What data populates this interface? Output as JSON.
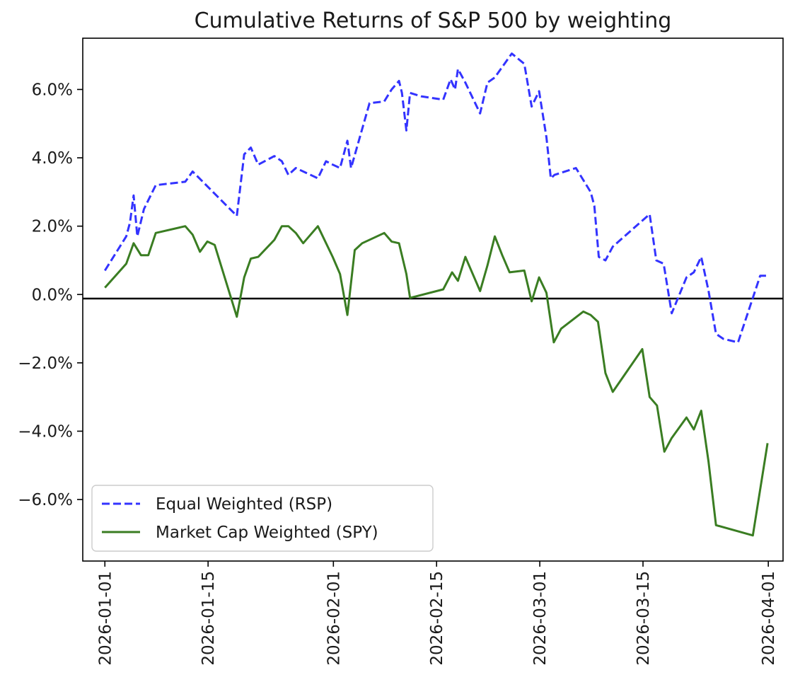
{
  "chart_data": {
    "type": "line",
    "title": "Cumulative Returns of S&P 500 by weighting",
    "xlabel": "",
    "ylabel": "",
    "ylim": [
      -7.8,
      7.5
    ],
    "xlim": [
      "2025-12-29",
      "2026-04-03"
    ],
    "grid": false,
    "legend_position": "lower-left",
    "baseline": 0,
    "yticks": [
      -6,
      -4,
      -2,
      0,
      2,
      4,
      6
    ],
    "ytick_labels": [
      "−6.0%",
      "−4.0%",
      "−2.0%",
      "0.0%",
      "2.0%",
      "4.0%",
      "6.0%"
    ],
    "xticks": [
      "2026-01-01",
      "2026-01-15",
      "2026-02-01",
      "2026-02-15",
      "2026-03-01",
      "2026-03-15",
      "2026-04-01"
    ],
    "xtick_labels": [
      "2026-01-01",
      "2026-01-15",
      "2026-02-01",
      "2026-02-15",
      "2026-03-01",
      "2026-03-15",
      "2026-04-01"
    ],
    "series": [
      {
        "name": "Equal Weighted (RSP)",
        "color": "#3333ff",
        "style": "dashed",
        "x": [
          1.0,
          3.9,
          4.4,
          4.9,
          5.4,
          6.3,
          7.9,
          11.9,
          12.9,
          18.9,
          19.9,
          20.8,
          21.8,
          24.0,
          25.0,
          25.9,
          26.9,
          29.9,
          31.0,
          31.9,
          32.9,
          33.9,
          34.4,
          36.9,
          38.9,
          39.9,
          40.9,
          41.3,
          41.9,
          42.4,
          43.9,
          46.9,
          47.9,
          48.5,
          48.9,
          49.9,
          51.9,
          52.9,
          53.9,
          56.2,
          57.9,
          58.9,
          59.9,
          60.9,
          61.5,
          62.0,
          64.9,
          66.9,
          67.4,
          68.0,
          68.9,
          69.9,
          74.9,
          75.8,
          76.8,
          77.9,
          79.9,
          80.9,
          81.9,
          82.9,
          83.9,
          84.9,
          86.9,
          89.9,
          90.9
        ],
        "y": [
          0.7,
          1.7,
          2.1,
          2.9,
          1.7,
          2.5,
          3.2,
          3.3,
          3.6,
          2.3,
          4.1,
          4.3,
          3.8,
          4.05,
          3.9,
          3.5,
          3.7,
          3.4,
          3.9,
          3.8,
          3.7,
          4.5,
          3.7,
          5.6,
          5.65,
          6.0,
          6.25,
          5.9,
          4.8,
          5.9,
          5.8,
          5.7,
          6.3,
          6.0,
          6.6,
          6.2,
          5.3,
          6.2,
          6.35,
          7.05,
          6.75,
          5.5,
          5.95,
          4.6,
          3.4,
          3.5,
          3.7,
          3.0,
          2.6,
          1.1,
          1.0,
          1.4,
          2.35,
          1.0,
          0.9,
          -0.55,
          0.5,
          0.65,
          1.1,
          0.1,
          -1.15,
          -1.3,
          -1.4,
          0.55,
          0.55
        ]
      },
      {
        "name": "Market Cap Weighted (SPY)",
        "color": "#3a7d22",
        "style": "solid",
        "x": [
          1.0,
          3.9,
          4.9,
          5.9,
          6.9,
          7.9,
          11.9,
          12.9,
          13.9,
          14.9,
          15.9,
          18.9,
          19.9,
          20.8,
          21.8,
          24.0,
          25.0,
          25.9,
          26.9,
          27.9,
          29.9,
          31.9,
          32.9,
          33.9,
          34.9,
          35.9,
          38.9,
          39.9,
          40.9,
          41.9,
          42.4,
          46.9,
          48.1,
          48.9,
          49.9,
          51.9,
          52.9,
          53.9,
          54.9,
          55.9,
          57.9,
          58.9,
          59.9,
          60.9,
          61.9,
          62.9,
          65.9,
          66.9,
          67.9,
          68.9,
          69.9,
          73.9,
          74.9,
          75.9,
          76.9,
          77.9,
          79.9,
          80.9,
          81.9,
          82.9,
          83.9,
          88.9,
          90.9
        ],
        "y": [
          0.2,
          0.9,
          1.5,
          1.15,
          1.15,
          1.8,
          2.0,
          1.75,
          1.25,
          1.55,
          1.45,
          -0.65,
          0.5,
          1.05,
          1.1,
          1.6,
          2.0,
          2.0,
          1.8,
          1.5,
          2.0,
          1.1,
          0.6,
          -0.6,
          1.3,
          1.5,
          1.8,
          1.55,
          1.5,
          0.6,
          -0.1,
          0.15,
          0.65,
          0.4,
          1.1,
          0.1,
          0.85,
          1.7,
          1.15,
          0.65,
          0.7,
          -0.2,
          0.5,
          0.05,
          -1.4,
          -1.0,
          -0.5,
          -0.6,
          -0.8,
          -2.3,
          -2.85,
          -1.6,
          -3.0,
          -3.25,
          -4.6,
          -4.2,
          -3.6,
          -3.95,
          -3.4,
          -4.9,
          -6.75,
          -7.05,
          -4.35
        ]
      }
    ]
  }
}
